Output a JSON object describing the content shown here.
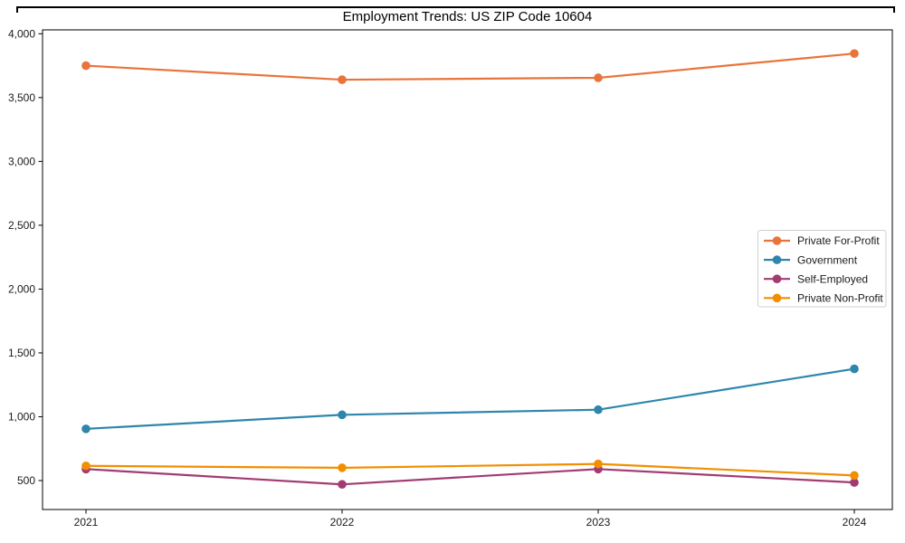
{
  "figure": {
    "title": "Employment Trends: US ZIP Code 10604"
  },
  "chart_data": {
    "type": "line",
    "title": "Employment Trends: US ZIP Code 10604",
    "xlabel": "",
    "ylabel": "",
    "categories": [
      "2021",
      "2022",
      "2023",
      "2024"
    ],
    "series": [
      {
        "name": "Private For-Profit",
        "color": "#e8743b",
        "values": [
          3750,
          3640,
          3655,
          3845
        ]
      },
      {
        "name": "Government",
        "color": "#2e86ab",
        "values": [
          905,
          1015,
          1055,
          1375
        ]
      },
      {
        "name": "Self-Employed",
        "color": "#a23b72",
        "values": [
          590,
          470,
          590,
          485
        ]
      },
      {
        "name": "Private Non-Profit",
        "color": "#f18f01",
        "values": [
          615,
          600,
          630,
          540
        ]
      }
    ],
    "yticks": [
      500,
      1000,
      1500,
      2000,
      2500,
      3000,
      3500,
      4000
    ],
    "ytick_labels": [
      "500",
      "1,000",
      "1,500",
      "2,000",
      "2,500",
      "3,000",
      "3,500",
      "4,000"
    ],
    "ylim": [
      273,
      4030
    ],
    "grid": false,
    "marker": "circle",
    "legend_position": "center right",
    "text_color": "#1a1a1a",
    "frame_color": "#000000",
    "legend_border_color": "#cfcfcf"
  }
}
